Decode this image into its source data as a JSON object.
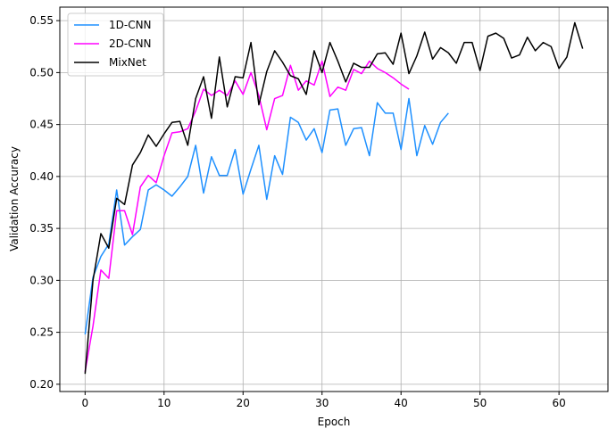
{
  "chart_data": {
    "type": "line",
    "title": "",
    "xlabel": "Epoch",
    "ylabel": "Validation Accuracy",
    "xlim": [
      -3.2,
      66.2
    ],
    "ylim": [
      0.193,
      0.563
    ],
    "xticks": [
      0,
      10,
      20,
      30,
      40,
      50,
      60
    ],
    "yticks": [
      0.2,
      0.25,
      0.3,
      0.35,
      0.4,
      0.45,
      0.5,
      0.55
    ],
    "ytick_labels": [
      "0.20",
      "0.25",
      "0.30",
      "0.35",
      "0.40",
      "0.45",
      "0.50",
      "0.55"
    ],
    "grid": true,
    "legend_position": "top-left",
    "series": [
      {
        "name": "1D-CNN",
        "color": "#1E90FF",
        "values": [
          0.248,
          0.303,
          0.323,
          0.335,
          0.387,
          0.334,
          0.342,
          0.349,
          0.387,
          0.392,
          0.387,
          0.381,
          0.39,
          0.4,
          0.43,
          0.384,
          0.419,
          0.401,
          0.401,
          0.426,
          0.383,
          0.407,
          0.43,
          0.378,
          0.42,
          0.402,
          0.457,
          0.452,
          0.435,
          0.446,
          0.423,
          0.464,
          0.465,
          0.43,
          0.446,
          0.447,
          0.42,
          0.471,
          0.461,
          0.461,
          0.426,
          0.475,
          0.42,
          0.449,
          0.431,
          0.452,
          0.461
        ]
      },
      {
        "name": "2D-CNN",
        "color": "#FF00FF",
        "values": [
          0.212,
          0.256,
          0.31,
          0.302,
          0.367,
          0.367,
          0.344,
          0.39,
          0.401,
          0.394,
          0.42,
          0.442,
          0.443,
          0.446,
          0.463,
          0.484,
          0.478,
          0.483,
          0.478,
          0.492,
          0.479,
          0.5,
          0.478,
          0.445,
          0.475,
          0.478,
          0.507,
          0.483,
          0.492,
          0.488,
          0.511,
          0.477,
          0.486,
          0.483,
          0.503,
          0.499,
          0.511,
          0.504,
          0.5,
          0.495,
          0.489,
          0.484
        ]
      },
      {
        "name": "MixNet",
        "color": "#000000",
        "values": [
          0.21,
          0.3,
          0.345,
          0.331,
          0.379,
          0.373,
          0.411,
          0.423,
          0.44,
          0.429,
          0.441,
          0.452,
          0.453,
          0.43,
          0.475,
          0.496,
          0.456,
          0.515,
          0.467,
          0.496,
          0.495,
          0.529,
          0.469,
          0.501,
          0.521,
          0.51,
          0.497,
          0.494,
          0.479,
          0.521,
          0.5,
          0.529,
          0.511,
          0.491,
          0.509,
          0.505,
          0.505,
          0.518,
          0.519,
          0.508,
          0.538,
          0.499,
          0.516,
          0.539,
          0.513,
          0.524,
          0.519,
          0.509,
          0.529,
          0.529,
          0.502,
          0.535,
          0.538,
          0.533,
          0.514,
          0.517,
          0.534,
          0.521,
          0.529,
          0.525,
          0.504,
          0.515,
          0.548,
          0.523
        ]
      }
    ]
  }
}
